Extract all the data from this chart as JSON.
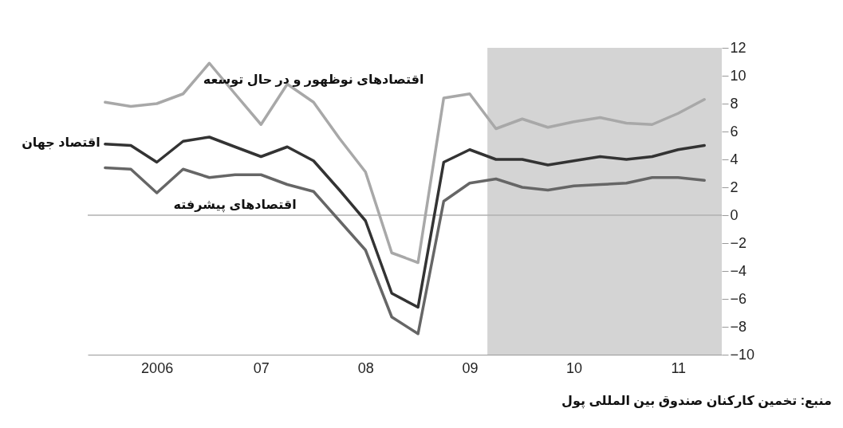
{
  "chart_data": {
    "type": "line",
    "x": [
      "2006-01",
      "2006-04",
      "2006-07",
      "2006-10",
      "2007-01",
      "2007-04",
      "2007-07",
      "2007-10",
      "2008-01",
      "2008-04",
      "2008-07",
      "2008-10",
      "2009-01",
      "2009-04",
      "2009-07",
      "2009-10",
      "2010-01",
      "2010-04",
      "2010-07",
      "2010-10",
      "2011-01",
      "2011-04",
      "2011-07",
      "2011-10"
    ],
    "xlim": [
      "2005-11",
      "2011-12"
    ],
    "xticks": [
      {
        "value": "2006-07",
        "label": "2006"
      },
      {
        "value": "2007-07",
        "label": "07"
      },
      {
        "value": "2008-07",
        "label": "08"
      },
      {
        "value": "2009-07",
        "label": "09"
      },
      {
        "value": "2010-07",
        "label": "10"
      },
      {
        "value": "2011-07",
        "label": "11"
      }
    ],
    "series": [
      {
        "name": "اقتصادهای نوظهور و در حال توسعه",
        "color": "#a8a8a8",
        "values": [
          8.1,
          7.8,
          8.0,
          8.7,
          10.9,
          8.7,
          6.5,
          9.4,
          8.1,
          5.5,
          3.1,
          -2.7,
          -3.4,
          8.4,
          8.7,
          6.2,
          6.9,
          6.3,
          6.7,
          7.0,
          6.6,
          6.5,
          7.3,
          8.3
        ]
      },
      {
        "name": "اقتصاد جهان",
        "color": "#333333",
        "values": [
          5.1,
          5.0,
          3.8,
          5.3,
          5.6,
          4.9,
          4.2,
          4.9,
          3.9,
          1.8,
          -0.4,
          -5.6,
          -6.6,
          3.8,
          4.7,
          4.0,
          4.0,
          3.6,
          3.9,
          4.2,
          4.0,
          4.2,
          4.7,
          5.0
        ]
      },
      {
        "name": "اقتصادهای پیشرفته",
        "color": "#666666",
        "values": [
          3.4,
          3.3,
          1.6,
          3.3,
          2.7,
          2.9,
          2.9,
          2.2,
          1.7,
          -0.4,
          -2.5,
          -7.3,
          -8.5,
          1.0,
          2.3,
          2.6,
          2.0,
          1.8,
          2.1,
          2.2,
          2.3,
          2.7,
          2.7,
          2.5
        ]
      }
    ],
    "ylim": [
      -10,
      12
    ],
    "yticks": [
      -10,
      -8,
      -6,
      -4,
      -2,
      0,
      2,
      4,
      6,
      8,
      10,
      12
    ],
    "ref_lines": [
      {
        "axis": "y",
        "value": 0,
        "color": "#b0b0b0"
      }
    ],
    "bands": [
      {
        "axis": "x",
        "from": "2009-09",
        "to": "2011-12",
        "color": "#d4d4d4"
      }
    ],
    "line_style": "solid",
    "annotations": [
      "منبع: تخمین کارکنان صندوق بین المللی پول"
    ]
  }
}
